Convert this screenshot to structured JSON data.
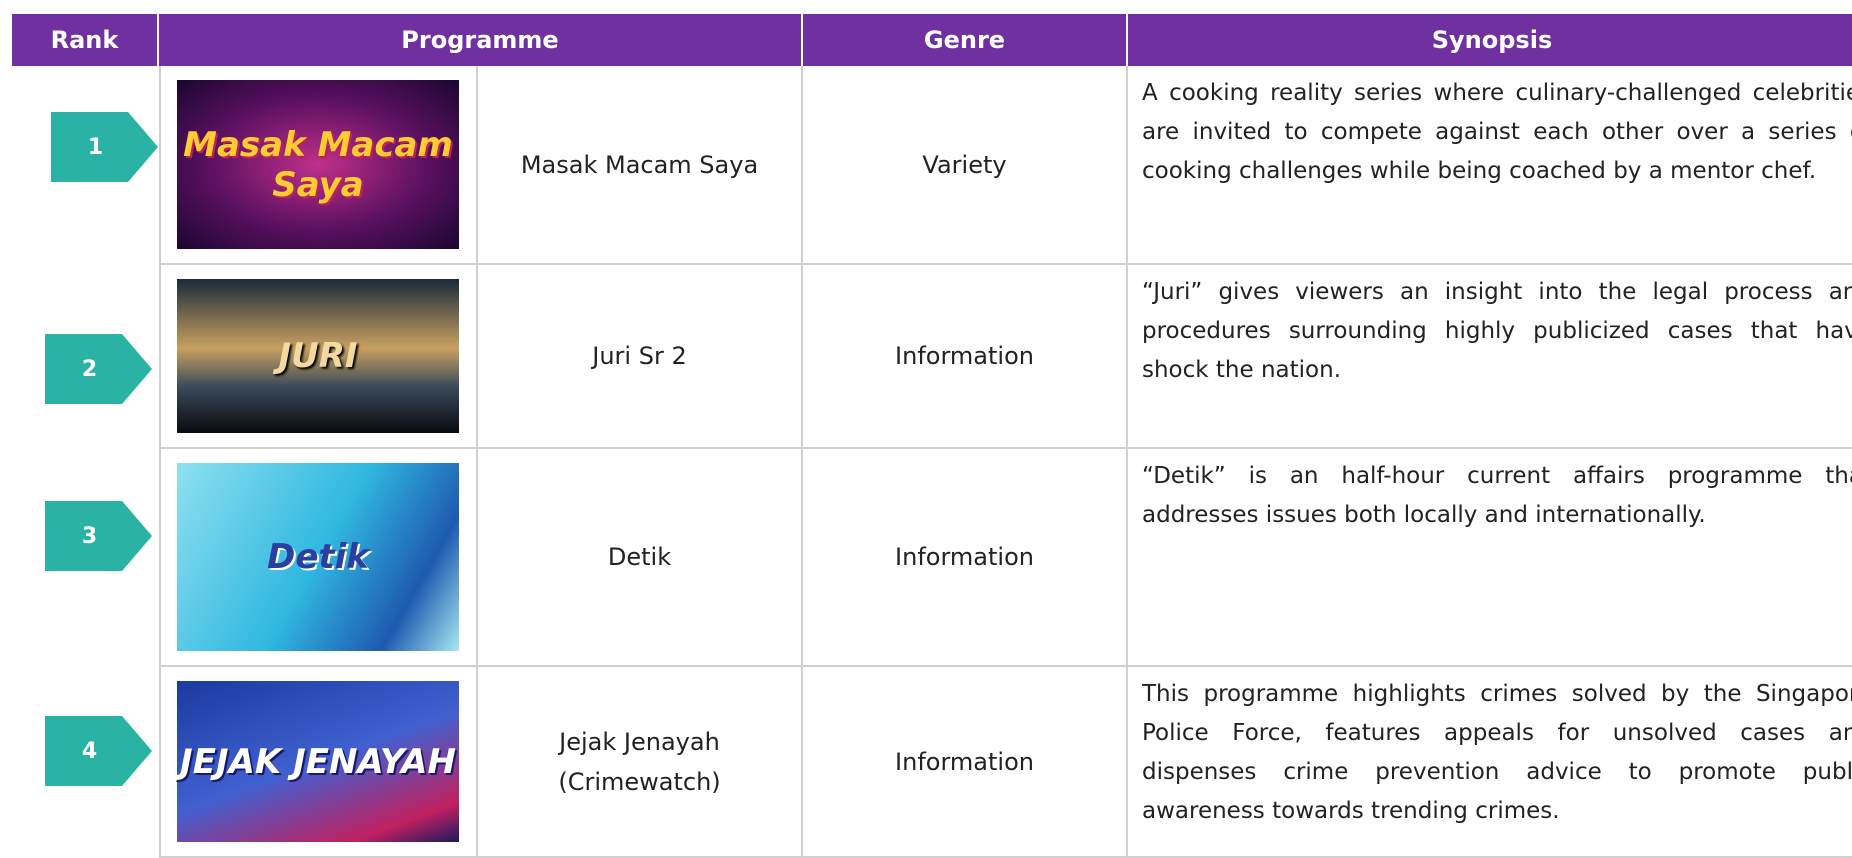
{
  "header": {
    "rank": "Rank",
    "programme": "Programme",
    "genre": "Genre",
    "synopsis": "Synopsis"
  },
  "rows": [
    {
      "rank": "1",
      "image_text": "Masak Macam Saya",
      "programme": "Masak Macam Saya",
      "genre": "Variety",
      "synopsis": "A cooking reality series where culinary-challenged celebrities are invited to compete against each other over a series of cooking challenges while being coached by a mentor chef."
    },
    {
      "rank": "2",
      "image_text": "JURI",
      "programme": "Juri Sr 2",
      "genre": "Information",
      "synopsis": "“Juri” gives viewers an insight into the legal process and procedures surrounding highly publicized cases that have shock the nation."
    },
    {
      "rank": "3",
      "image_text": "Detik",
      "programme": "Detik",
      "genre": "Information",
      "synopsis": "“Detik” is an half-hour current affairs programme that addresses issues both locally and internationally."
    },
    {
      "rank": "4",
      "image_text": "JEJAK JENAYAH",
      "programme": "Jejak Jenayah\n(Crimewatch)",
      "genre": "Information",
      "synopsis": "This programme highlights crimes solved by the Singapore Police Force, features appeals for unsolved cases and dispenses crime prevention advice to promote public awareness towards trending crimes."
    }
  ]
}
